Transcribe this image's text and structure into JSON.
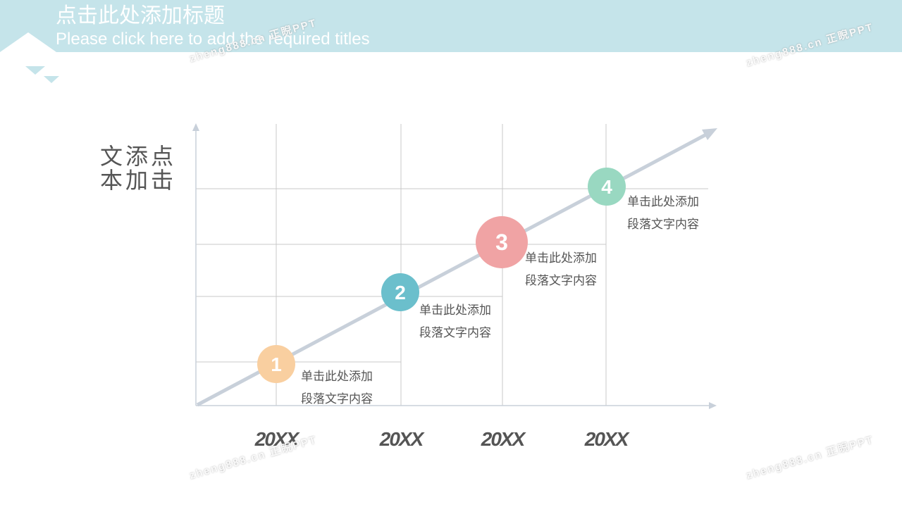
{
  "header": {
    "title": "点击此处添加标题",
    "subtitle": "Please click here to add the required titles"
  },
  "side_label": {
    "line1": "文添点",
    "line2": "本加击"
  },
  "steps": [
    {
      "number": "1",
      "line1": "单击此处添加",
      "line2": "段落文字内容",
      "color": "#f9cfa0"
    },
    {
      "number": "2",
      "line1": "单击此处添加",
      "line2": "段落文字内容",
      "color": "#6bbfcc"
    },
    {
      "number": "3",
      "line1": "单击此处添加",
      "line2": "段落文字内容",
      "color": "#f0a3a4"
    },
    {
      "number": "4",
      "line1": "单击此处添加",
      "line2": "段落文字内容",
      "color": "#99d8c1"
    }
  ],
  "years": [
    "20XX",
    "20XX",
    "20XX",
    "20XX"
  ],
  "watermarks": [
    "zheng888.cn 正睨PPT",
    "zheng888.cn 正睨PPT",
    "zheng888.cn 正睨PPT",
    "zheng888.cn 正睨PPT"
  ],
  "colors": {
    "header": "#c5e4ea",
    "arrow": "#c8d0da",
    "grid": "#c8c8c8",
    "text": "#555555"
  }
}
